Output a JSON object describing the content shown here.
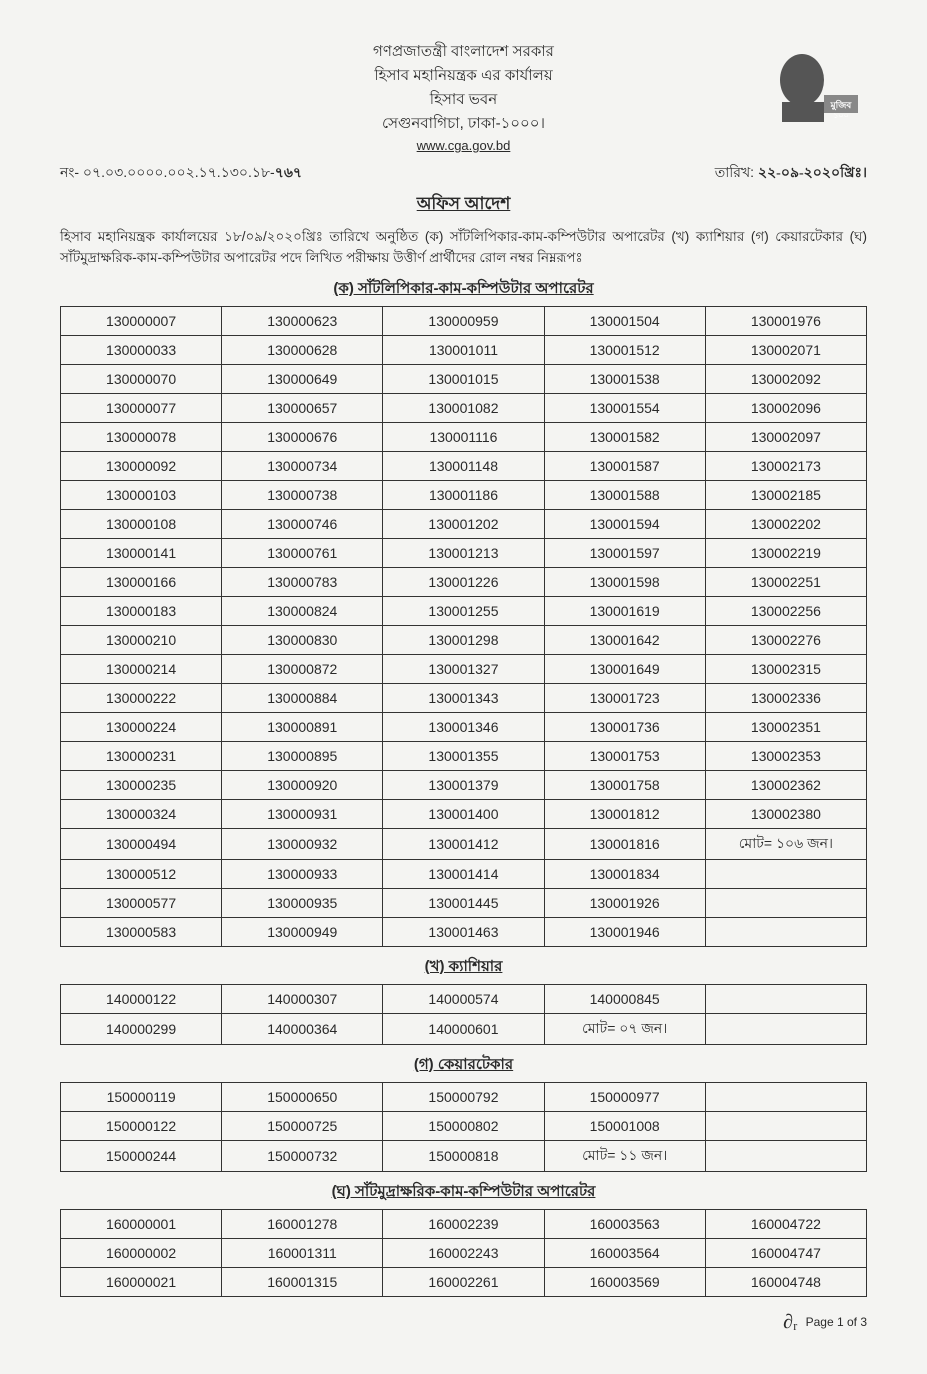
{
  "header": {
    "line1": "গণপ্রজাতন্ত্রী বাংলাদেশ সরকার",
    "line2": "হিসাব মহানিয়ন্ত্রক এর কার্যালয়",
    "line3": "হিসাব ভবন",
    "line4": "সেগুনবাগিচা, ঢাকা-১০০০।",
    "url": "www.cga.gov.bd",
    "ref_label": "নং- ০৭.০৩.০০০০.০০২.১৭.১৩০.১৮-",
    "ref_hand": "৭৬৭",
    "date_label": "তারিখ:",
    "date_hand": "২২-০৯-২০২০খ্রিঃ।"
  },
  "order_title": "অফিস আদেশ",
  "intro": "হিসাব মহানিয়ন্ত্রক কার্যালয়ের ১৮/০৯/২০২০খ্রিঃ তারিখে অনুষ্ঠিত (ক) সাঁটলিপিকার-কাম-কম্পিউটার অপারেটর (খ) ক্যাশিয়ার (গ) কেয়ারটেকার (ঘ) সাঁটমুদ্রাক্ষরিক-কাম-কম্পিউটার অপারেটর পদে লিখিত পরীক্ষায় উত্তীর্ণ প্রার্থীদের রোল নম্বর নিম্নরূপঃ",
  "sections": {
    "ka": {
      "title": "(ক) সাঁটলিপিকার-কাম-কম্পিউটার অপারেটর",
      "rows": [
        [
          "130000007",
          "130000623",
          "130000959",
          "130001504",
          "130001976"
        ],
        [
          "130000033",
          "130000628",
          "130001011",
          "130001512",
          "130002071"
        ],
        [
          "130000070",
          "130000649",
          "130001015",
          "130001538",
          "130002092"
        ],
        [
          "130000077",
          "130000657",
          "130001082",
          "130001554",
          "130002096"
        ],
        [
          "130000078",
          "130000676",
          "130001116",
          "130001582",
          "130002097"
        ],
        [
          "130000092",
          "130000734",
          "130001148",
          "130001587",
          "130002173"
        ],
        [
          "130000103",
          "130000738",
          "130001186",
          "130001588",
          "130002185"
        ],
        [
          "130000108",
          "130000746",
          "130001202",
          "130001594",
          "130002202"
        ],
        [
          "130000141",
          "130000761",
          "130001213",
          "130001597",
          "130002219"
        ],
        [
          "130000166",
          "130000783",
          "130001226",
          "130001598",
          "130002251"
        ],
        [
          "130000183",
          "130000824",
          "130001255",
          "130001619",
          "130002256"
        ],
        [
          "130000210",
          "130000830",
          "130001298",
          "130001642",
          "130002276"
        ],
        [
          "130000214",
          "130000872",
          "130001327",
          "130001649",
          "130002315"
        ],
        [
          "130000222",
          "130000884",
          "130001343",
          "130001723",
          "130002336"
        ],
        [
          "130000224",
          "130000891",
          "130001346",
          "130001736",
          "130002351"
        ],
        [
          "130000231",
          "130000895",
          "130001355",
          "130001753",
          "130002353"
        ],
        [
          "130000235",
          "130000920",
          "130001379",
          "130001758",
          "130002362"
        ],
        [
          "130000324",
          "130000931",
          "130001400",
          "130001812",
          "130002380"
        ],
        [
          "130000494",
          "130000932",
          "130001412",
          "130001816",
          "মোট= ১০৬ জন।"
        ],
        [
          "130000512",
          "130000933",
          "130001414",
          "130001834",
          ""
        ],
        [
          "130000577",
          "130000935",
          "130001445",
          "130001926",
          ""
        ],
        [
          "130000583",
          "130000949",
          "130001463",
          "130001946",
          ""
        ]
      ]
    },
    "kha": {
      "title": "(খ) ক্যাশিয়ার",
      "rows": [
        [
          "140000122",
          "140000307",
          "140000574",
          "140000845",
          ""
        ],
        [
          "140000299",
          "140000364",
          "140000601",
          "মোট= ০৭ জন।",
          ""
        ]
      ]
    },
    "ga": {
      "title": "(গ) কেয়ারটেকার",
      "rows": [
        [
          "150000119",
          "150000650",
          "150000792",
          "150000977",
          ""
        ],
        [
          "150000122",
          "150000725",
          "150000802",
          "150001008",
          ""
        ],
        [
          "150000244",
          "150000732",
          "150000818",
          "মোট= ১১ জন।",
          ""
        ]
      ]
    },
    "gha": {
      "title": "(ঘ) সাঁটমুদ্রাক্ষরিক-কাম-কম্পিউটার অপারেটর",
      "rows": [
        [
          "160000001",
          "160001278",
          "160002239",
          "160003563",
          "160004722"
        ],
        [
          "160000002",
          "160001311",
          "160002243",
          "160003564",
          "160004747"
        ],
        [
          "160000021",
          "160001315",
          "160002261",
          "160003569",
          "160004748"
        ]
      ]
    }
  },
  "footer": {
    "signature": "∂ᵣ",
    "page": "Page 1 of 3"
  },
  "colors": {
    "text": "#2a2a2a",
    "border": "#333333",
    "background": "#f4f4f2"
  }
}
